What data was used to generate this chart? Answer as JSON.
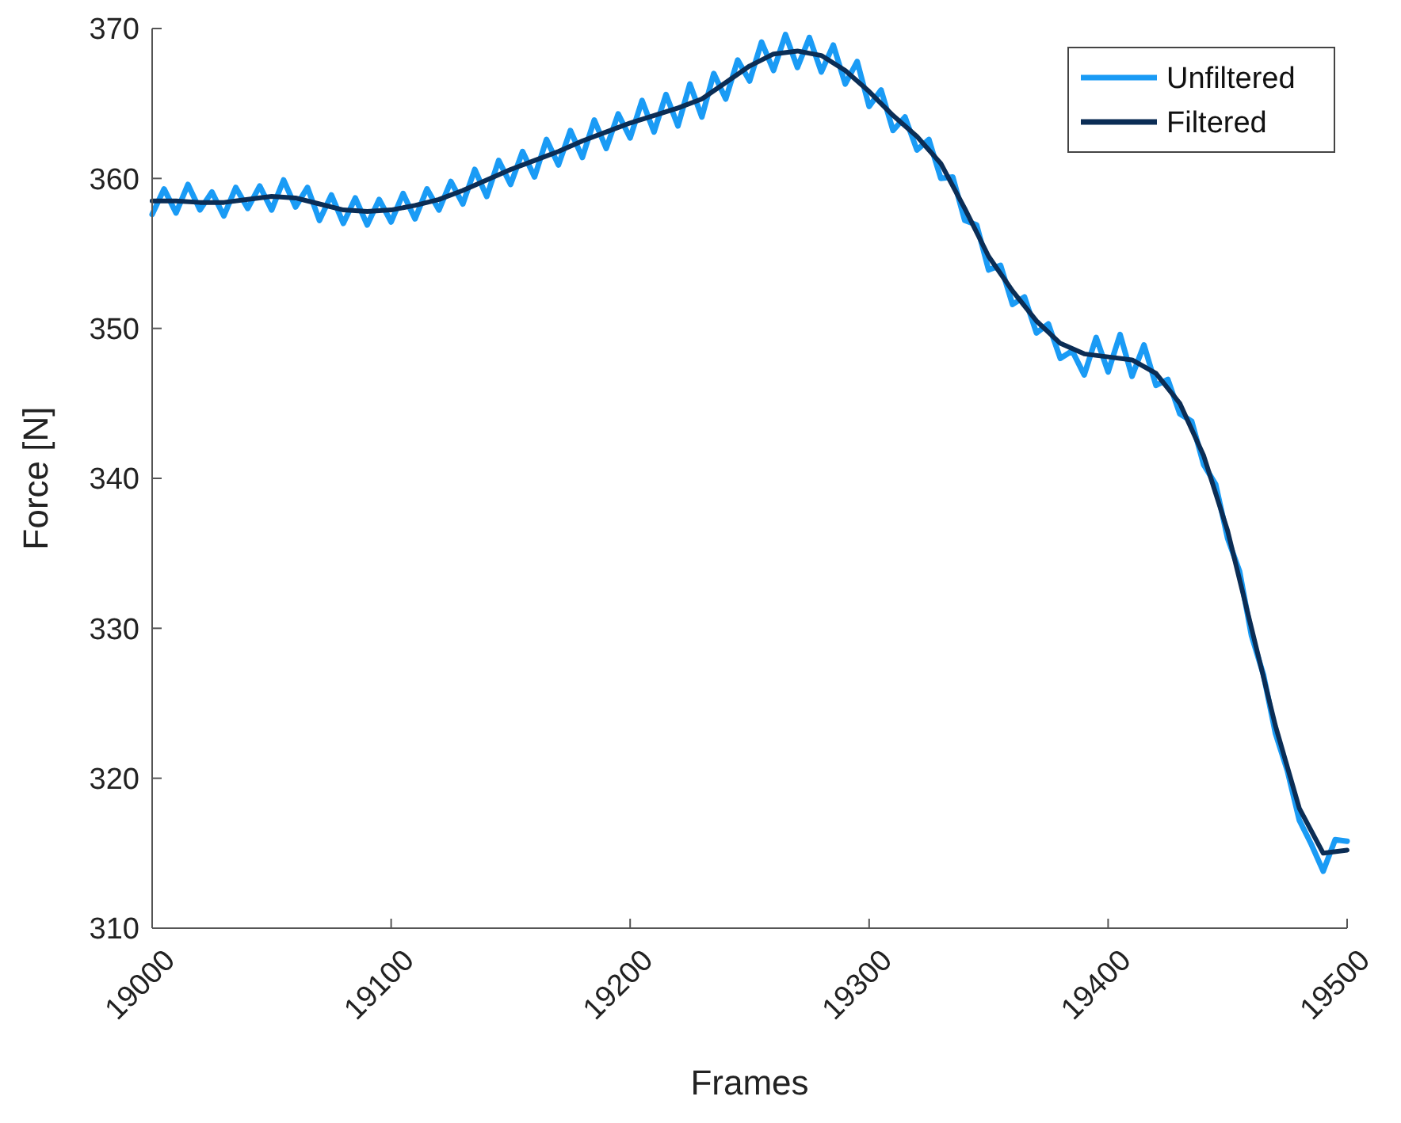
{
  "chart_data": {
    "type": "line",
    "xlabel": "Frames",
    "ylabel": "Force [N]",
    "xlim": [
      19000,
      19500
    ],
    "xticks": [
      19000,
      19100,
      19200,
      19300,
      19400,
      19500
    ],
    "ylim": [
      310,
      370
    ],
    "yticks": [
      310,
      320,
      330,
      340,
      350,
      360,
      370
    ],
    "legend": "top right",
    "grid": false,
    "marker": "none",
    "line_style": "solid",
    "series": [
      {
        "name": "Unfiltered",
        "color": "#1a9bf5",
        "x": [
          19000,
          19005,
          19010,
          19015,
          19020,
          19025,
          19030,
          19035,
          19040,
          19045,
          19050,
          19055,
          19060,
          19065,
          19070,
          19075,
          19080,
          19085,
          19090,
          19095,
          19100,
          19105,
          19110,
          19115,
          19120,
          19125,
          19130,
          19135,
          19140,
          19145,
          19150,
          19155,
          19160,
          19165,
          19170,
          19175,
          19180,
          19185,
          19190,
          19195,
          19200,
          19205,
          19210,
          19215,
          19220,
          19225,
          19230,
          19235,
          19240,
          19245,
          19250,
          19255,
          19260,
          19265,
          19270,
          19275,
          19280,
          19285,
          19290,
          19295,
          19300,
          19305,
          19310,
          19315,
          19320,
          19325,
          19330,
          19335,
          19340,
          19345,
          19350,
          19355,
          19360,
          19365,
          19370,
          19375,
          19380,
          19385,
          19390,
          19395,
          19400,
          19405,
          19410,
          19415,
          19420,
          19425,
          19430,
          19435,
          19440,
          19445,
          19450,
          19455,
          19460,
          19465,
          19470,
          19475,
          19480,
          19485,
          19490,
          19495,
          19500
        ],
        "values": [
          357.6,
          359.3,
          357.7,
          359.6,
          357.9,
          359.1,
          357.5,
          359.4,
          358.0,
          359.5,
          357.9,
          359.9,
          358.1,
          359.4,
          357.2,
          358.9,
          357.0,
          358.7,
          356.9,
          358.6,
          357.1,
          359.0,
          357.3,
          359.3,
          357.9,
          359.8,
          358.3,
          360.6,
          358.8,
          361.2,
          359.6,
          361.8,
          360.1,
          362.6,
          360.9,
          363.2,
          361.4,
          363.9,
          362.0,
          364.3,
          362.7,
          365.2,
          363.1,
          365.6,
          363.5,
          366.3,
          364.1,
          367.0,
          365.3,
          367.9,
          366.5,
          369.1,
          367.2,
          369.6,
          367.4,
          369.4,
          367.1,
          368.9,
          366.3,
          367.8,
          364.8,
          365.9,
          363.2,
          364.1,
          361.9,
          362.6,
          360.0,
          360.1,
          357.2,
          356.9,
          353.9,
          354.2,
          351.6,
          352.1,
          349.7,
          350.3,
          348.0,
          348.5,
          346.9,
          349.4,
          347.1,
          349.6,
          346.8,
          348.9,
          346.2,
          346.6,
          344.3,
          343.8,
          340.9,
          339.6,
          336.0,
          333.8,
          329.5,
          326.9,
          323.0,
          320.5,
          317.2,
          315.6,
          313.8,
          315.9,
          315.8
        ]
      },
      {
        "name": "Filtered",
        "color": "#0b2d55",
        "x": [
          19000,
          19010,
          19020,
          19030,
          19040,
          19050,
          19060,
          19070,
          19080,
          19090,
          19100,
          19110,
          19120,
          19130,
          19140,
          19150,
          19160,
          19170,
          19180,
          19190,
          19200,
          19210,
          19220,
          19230,
          19240,
          19250,
          19260,
          19270,
          19280,
          19290,
          19300,
          19310,
          19320,
          19330,
          19340,
          19350,
          19360,
          19370,
          19380,
          19390,
          19400,
          19410,
          19420,
          19430,
          19440,
          19450,
          19460,
          19470,
          19480,
          19490,
          19500
        ],
        "values": [
          358.5,
          358.5,
          358.4,
          358.4,
          358.6,
          358.8,
          358.7,
          358.3,
          357.9,
          357.8,
          357.9,
          358.2,
          358.6,
          359.2,
          359.9,
          360.6,
          361.2,
          361.8,
          362.5,
          363.1,
          363.7,
          364.2,
          364.7,
          365.3,
          366.4,
          367.5,
          368.3,
          368.5,
          368.2,
          367.2,
          365.8,
          364.2,
          362.8,
          361.0,
          358.0,
          354.8,
          352.5,
          350.5,
          349.0,
          348.3,
          348.1,
          347.9,
          347.0,
          345.0,
          341.5,
          336.5,
          330.0,
          323.5,
          318.0,
          315.0,
          315.2
        ]
      }
    ]
  }
}
